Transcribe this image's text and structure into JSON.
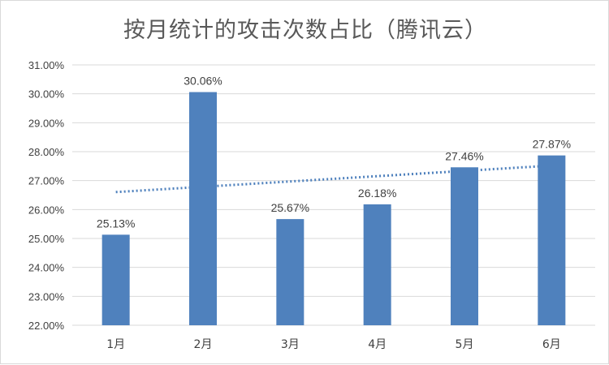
{
  "chart_data": {
    "type": "bar",
    "title": "按月统计的攻击次数占比（腾讯云）",
    "categories": [
      "1月",
      "2月",
      "3月",
      "4月",
      "5月",
      "6月"
    ],
    "values": [
      25.13,
      30.06,
      25.67,
      26.18,
      27.46,
      27.87
    ],
    "data_labels": [
      "25.13%",
      "30.06%",
      "25.67%",
      "26.18%",
      "27.46%",
      "27.87%"
    ],
    "ylim": [
      22,
      31
    ],
    "y_ticks": [
      "22.00%",
      "23.00%",
      "24.00%",
      "25.00%",
      "26.00%",
      "27.00%",
      "28.00%",
      "29.00%",
      "30.00%",
      "31.00%"
    ],
    "xlabel": "",
    "ylabel": "",
    "grid": true,
    "legend": "none",
    "trendline": {
      "type": "linear",
      "style": "dotted"
    },
    "colors": {
      "bar": "#4f81bd",
      "trendline": "#4f81bd",
      "grid": "#d9d9d9"
    }
  }
}
